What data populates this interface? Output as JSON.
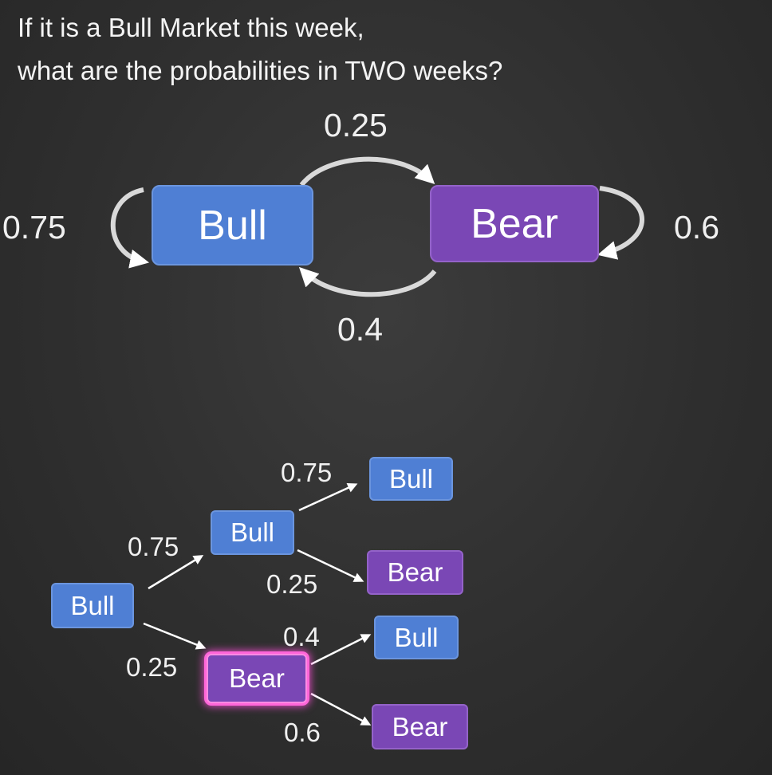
{
  "question": {
    "line1": "If it is a Bull Market this week,",
    "line2": "what are the probabilities in TWO weeks?"
  },
  "markov": {
    "bull_label": "Bull",
    "bear_label": "Bear",
    "p_bull_bull": "0.75",
    "p_bull_bear": "0.25",
    "p_bear_bull": "0.4",
    "p_bear_bear": "0.6"
  },
  "tree": {
    "root": "Bull",
    "level1": [
      {
        "state": "Bull",
        "prob": "0.75"
      },
      {
        "state": "Bear",
        "prob": "0.25"
      }
    ],
    "level2": [
      {
        "state": "Bull",
        "prob": "0.75"
      },
      {
        "state": "Bear",
        "prob": "0.25"
      },
      {
        "state": "Bull",
        "prob": "0.4"
      },
      {
        "state": "Bear",
        "prob": "0.6"
      }
    ]
  },
  "colors": {
    "bull": "#4f7fd4",
    "bear": "#7a47b5",
    "highlight": "#ff66d9",
    "background": "#2f2f2f"
  }
}
